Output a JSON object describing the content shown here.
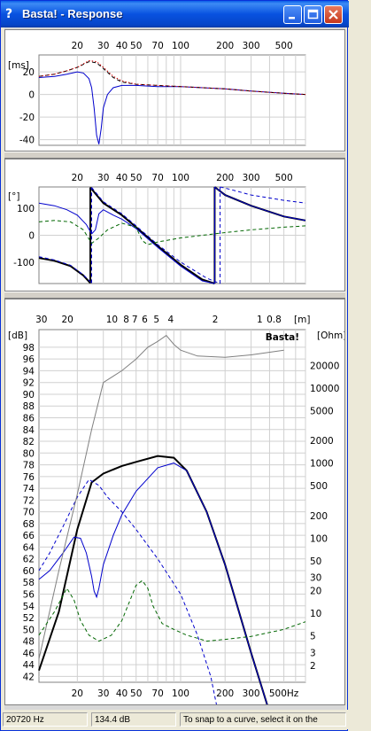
{
  "window": {
    "title": "Basta! - Response",
    "app_icon": "question-icon"
  },
  "controls": {
    "minimize": "minimize-icon",
    "maximize": "maximize-icon",
    "close": "close-icon"
  },
  "watermark": "Basta!",
  "status": {
    "frequency": "20720 Hz",
    "level": "134.4 dB",
    "hint": "To snap to a curve, select it on the"
  },
  "group_delay": {
    "unit": "[ms]",
    "freq_ticks": [
      "20",
      "30",
      "40",
      "50",
      "70",
      "100",
      "200",
      "300",
      "500"
    ],
    "y_ticks": [
      "20",
      "0",
      "-20",
      "-40"
    ]
  },
  "phase": {
    "unit": "[°]",
    "freq_ticks": [
      "20",
      "30",
      "40",
      "50",
      "70",
      "100",
      "200",
      "300",
      "500"
    ],
    "y_ticks": [
      "100",
      "0",
      "-100"
    ]
  },
  "magnitude": {
    "unit_left": "[dB]",
    "unit_right": "[Ohm]",
    "wavelength_unit": "[m]",
    "wavelength_ticks": [
      "30",
      "20",
      "10",
      "8",
      "7",
      "6",
      "5",
      "4",
      "2",
      "1",
      "0.8"
    ],
    "db_ticks": [
      "98",
      "96",
      "94",
      "92",
      "90",
      "88",
      "86",
      "84",
      "82",
      "80",
      "78",
      "76",
      "74",
      "72",
      "70",
      "68",
      "66",
      "64",
      "62",
      "60",
      "58",
      "56",
      "54",
      "52",
      "50",
      "48",
      "46",
      "44",
      "42"
    ],
    "ohm_ticks": [
      "20000",
      "10000",
      "5000",
      "2000",
      "1000",
      "500",
      "200",
      "100",
      "50",
      "30",
      "20",
      "10",
      "5",
      "3",
      "2"
    ],
    "freq_ticks": [
      "20",
      "30",
      "40",
      "50",
      "70",
      "100",
      "200",
      "300",
      "500Hz"
    ]
  },
  "chart_data": [
    {
      "type": "line",
      "title": "",
      "ylabel": "[ms]",
      "xscale": "log",
      "xlim": [
        11,
        700
      ],
      "ylim": [
        -45,
        35
      ],
      "grid": true,
      "series": [
        {
          "color": "#0000cc",
          "style": "solid",
          "x": [
            11,
            14,
            17,
            20,
            22,
            24,
            25,
            26,
            27,
            28,
            29,
            30,
            32,
            35,
            40,
            50,
            70,
            100,
            200,
            300,
            500,
            700
          ],
          "y": [
            15,
            16,
            18,
            20,
            19,
            14,
            6,
            -12,
            -36,
            -44,
            -30,
            -12,
            0,
            6,
            8,
            8,
            7,
            7,
            5,
            3,
            1,
            0
          ]
        },
        {
          "color": "#000000",
          "style": "dashed",
          "x": [
            11,
            14,
            17,
            20,
            24,
            27,
            30,
            35,
            40,
            50,
            70,
            100,
            200,
            300,
            500,
            700
          ],
          "y": [
            16,
            18,
            21,
            24,
            29,
            28,
            23,
            15,
            11,
            9,
            8,
            7,
            5,
            3,
            1,
            0
          ]
        },
        {
          "color": "#cc0000",
          "style": "dotted",
          "x": [
            11,
            14,
            17,
            20,
            24,
            27,
            30,
            35,
            40,
            50,
            70,
            100,
            200,
            300,
            500,
            700
          ],
          "y": [
            16,
            18,
            21,
            24,
            30,
            29,
            24,
            16,
            12,
            9,
            8,
            7,
            5,
            3,
            1,
            0
          ]
        }
      ]
    },
    {
      "type": "line",
      "title": "",
      "ylabel": "[°]",
      "xscale": "log",
      "xlim": [
        11,
        700
      ],
      "ylim": [
        -180,
        180
      ],
      "grid": true,
      "series": [
        {
          "color": "#000000",
          "style": "solid",
          "width": 2,
          "segments": [
            {
              "x": [
                11,
                14,
                18,
                22,
                24.5
              ],
              "y": [
                -85,
                -95,
                -115,
                -150,
                -178
              ]
            },
            {
              "x": [
                24.5,
                30,
                40,
                50,
                70,
                100,
                140,
                170
              ],
              "y": [
                178,
                120,
                75,
                30,
                -40,
                -110,
                -165,
                -180
              ]
            },
            {
              "x": [
                170,
                200,
                300,
                500,
                700
              ],
              "y": [
                180,
                150,
                110,
                70,
                55
              ]
            }
          ]
        },
        {
          "color": "#0000cc",
          "style": "solid",
          "width": 1,
          "segments": [
            {
              "x": [
                11,
                14,
                17,
                20,
                23,
                25
              ],
              "y": [
                120,
                110,
                95,
                75,
                40,
                5
              ]
            },
            {
              "x": [
                25,
                26.5,
                28,
                30,
                35,
                40,
                50,
                70,
                100,
                140,
                170
              ],
              "y": [
                5,
                20,
                80,
                95,
                75,
                60,
                25,
                -45,
                -115,
                -170,
                -180
              ]
            },
            {
              "x": [
                170,
                200,
                300,
                500,
                700
              ],
              "y": [
                180,
                150,
                110,
                70,
                55
              ]
            }
          ]
        },
        {
          "color": "#0000cc",
          "style": "dashed",
          "segments": [
            {
              "x": [
                11,
                14,
                18,
                22,
                25
              ],
              "y": [
                -80,
                -92,
                -112,
                -148,
                -178
              ]
            },
            {
              "x": [
                25,
                30,
                40,
                50,
                70,
                100,
                150,
                185
              ],
              "y": [
                178,
                125,
                80,
                35,
                -35,
                -100,
                -160,
                -180
              ]
            },
            {
              "x": [
                185,
                220,
                300,
                500,
                700
              ],
              "y": [
                180,
                170,
                150,
                130,
                120
              ]
            }
          ]
        },
        {
          "color": "#006600",
          "style": "dashed",
          "x": [
            11,
            14,
            18,
            22,
            25,
            28,
            32,
            40,
            50,
            55,
            60,
            70,
            100,
            200,
            300,
            500,
            700
          ],
          "y": [
            50,
            55,
            50,
            20,
            -30,
            -10,
            20,
            45,
            30,
            -20,
            -35,
            -25,
            -10,
            10,
            20,
            30,
            35
          ]
        }
      ]
    },
    {
      "type": "line",
      "title": "",
      "ylabel": "[dB]",
      "y2label": "[Ohm]",
      "xscale": "log",
      "xlim": [
        11,
        700
      ],
      "ylim": [
        41,
        101
      ],
      "y2scale": "log",
      "grid": true,
      "legend": "none",
      "series": [
        {
          "color": "#000000",
          "style": "solid",
          "width": 2,
          "x": [
            11,
            15,
            20,
            25,
            30,
            40,
            50,
            70,
            90,
            110,
            150,
            200,
            300,
            500
          ],
          "y": [
            43,
            53,
            67,
            75,
            76.5,
            77.8,
            78.5,
            79.5,
            79.2,
            77,
            70,
            61,
            46,
            28
          ]
        },
        {
          "color": "#0000cc",
          "style": "solid",
          "width": 1,
          "x": [
            11,
            13,
            16,
            19,
            21,
            23,
            25,
            26,
            27,
            28,
            30,
            35,
            40,
            50,
            70,
            90,
            110,
            150,
            200,
            300,
            500
          ],
          "y": [
            58.5,
            60,
            63,
            65.7,
            65.5,
            63,
            59,
            56.5,
            55.5,
            57,
            61,
            66,
            69.5,
            73.5,
            77.5,
            78.3,
            77,
            70,
            61,
            46,
            28
          ]
        },
        {
          "color": "#0000cc",
          "style": "dashed",
          "width": 1,
          "x": [
            11,
            13,
            16,
            20,
            24,
            28,
            32,
            40,
            50,
            70,
            100,
            130,
            160,
            200
          ],
          "y": [
            60,
            63,
            67.5,
            72.5,
            75.5,
            74.5,
            72.5,
            70,
            67,
            62,
            56,
            49,
            42,
            30
          ]
        },
        {
          "color": "#808080",
          "style": "solid",
          "width": 1,
          "axis": "right",
          "x": [
            11,
            15,
            20,
            25,
            30,
            40,
            50,
            60,
            70,
            80,
            90,
            100,
            130,
            200,
            300,
            500
          ],
          "y": [
            45,
            60,
            73,
            84,
            92,
            94,
            96,
            98,
            99,
            100,
            98.5,
            97.5,
            96.5,
            96.3,
            96.7,
            97.5
          ]
        },
        {
          "color": "#006600",
          "style": "dashed",
          "width": 1,
          "axis": "right",
          "x": [
            11,
            14,
            17,
            19,
            21,
            24,
            28,
            34,
            40,
            50,
            55,
            60,
            65,
            75,
            90,
            110,
            130,
            150,
            200,
            300,
            500,
            700
          ],
          "y": [
            49,
            53,
            57,
            55,
            51.5,
            49,
            48,
            49,
            51.5,
            57.5,
            58.3,
            57,
            54,
            51,
            50,
            49,
            48.5,
            48,
            48.3,
            48.8,
            50,
            51.3
          ]
        }
      ]
    }
  ]
}
